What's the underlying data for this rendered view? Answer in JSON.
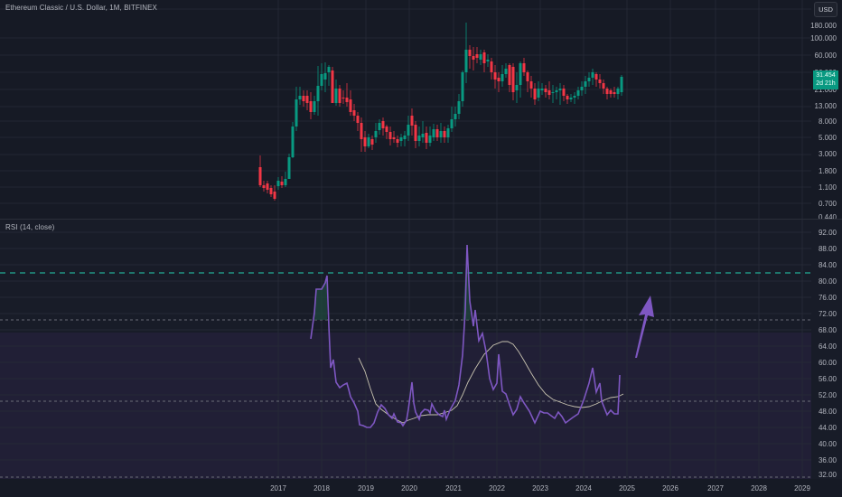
{
  "header": {
    "symbol_title": "Ethereum Classic / U.S. Dollar, 1M, BITFINEX",
    "currency_button": "USD"
  },
  "last_price": {
    "value": "31.454",
    "countdown": "2d 21h",
    "color": "#089981"
  },
  "rsi_legend": "RSI (14, close)",
  "colors": {
    "up": "#089981",
    "down": "#f23645",
    "rsi_line": "#7e57c2",
    "rsi_ma": "#c8c3b0",
    "upper_band": "#22ab94",
    "arrow": "#7e57c2"
  },
  "price_axis": [
    "180.000",
    "100.000",
    "60.000",
    "36.000",
    "21.000",
    "13.000",
    "8.000",
    "5.000",
    "3.000",
    "1.800",
    "1.100",
    "0.700",
    "0.440"
  ],
  "rsi_axis": [
    "92.00",
    "88.00",
    "84.00",
    "80.00",
    "76.00",
    "72.00",
    "68.00",
    "64.00",
    "60.00",
    "56.00",
    "52.00",
    "48.00",
    "44.00",
    "40.00",
    "36.00",
    "32.00"
  ],
  "time_axis": [
    "2017",
    "2018",
    "2019",
    "2020",
    "2021",
    "2022",
    "2023",
    "2024",
    "2025",
    "2026",
    "2027",
    "2028",
    "2029"
  ],
  "chart_data": [
    {
      "type": "candlestick",
      "title": "Ethereum Classic / U.S. Dollar, 1M, BITFINEX",
      "xlabel": "",
      "ylabel": "USD",
      "scale": "log",
      "ylim": [
        0.44,
        180
      ],
      "x_range": [
        "2016-08",
        "2024-11"
      ],
      "approx_monthly_close_path": [
        {
          "date": "2016-08",
          "close": 1.5
        },
        {
          "date": "2016-12",
          "close": 1.2
        },
        {
          "date": "2017-04",
          "close": 3.0
        },
        {
          "date": "2017-06",
          "close": 18
        },
        {
          "date": "2017-09",
          "close": 12
        },
        {
          "date": "2018-01",
          "close": 35
        },
        {
          "date": "2018-04",
          "close": 17
        },
        {
          "date": "2018-08",
          "close": 12
        },
        {
          "date": "2018-12",
          "close": 4.5
        },
        {
          "date": "2019-06",
          "close": 7
        },
        {
          "date": "2019-12",
          "close": 4.3
        },
        {
          "date": "2020-06",
          "close": 6.5
        },
        {
          "date": "2020-12",
          "close": 5.8
        },
        {
          "date": "2021-03",
          "close": 12
        },
        {
          "date": "2021-05",
          "close": 70
        },
        {
          "date": "2021-06",
          "close": 52
        },
        {
          "date": "2021-09",
          "close": 50
        },
        {
          "date": "2022-01",
          "close": 25
        },
        {
          "date": "2022-04",
          "close": 30
        },
        {
          "date": "2022-08",
          "close": 30
        },
        {
          "date": "2022-12",
          "close": 16
        },
        {
          "date": "2023-06",
          "close": 18
        },
        {
          "date": "2023-12",
          "close": 21
        },
        {
          "date": "2024-03",
          "close": 32
        },
        {
          "date": "2024-07",
          "close": 20
        },
        {
          "date": "2024-10",
          "close": 19
        },
        {
          "date": "2024-11",
          "close": 31.454
        }
      ],
      "all_time_high_wick": {
        "date": "2021-05",
        "high": 170
      }
    },
    {
      "type": "line",
      "title": "RSI (14, close)",
      "ylim": [
        30,
        94
      ],
      "hlines": [
        {
          "value": 81.5,
          "style": "dashed",
          "color": "#22ab94"
        },
        {
          "value": 70,
          "style": "dotted"
        },
        {
          "value": 50,
          "style": "dotted"
        }
      ],
      "band": [
        30,
        70
      ],
      "series": [
        {
          "name": "RSI",
          "x": [
            "2017-10",
            "2017-11",
            "2017-12",
            "2018-01",
            "2018-02",
            "2018-03",
            "2018-04",
            "2018-06",
            "2018-09",
            "2018-12",
            "2019-03",
            "2019-06",
            "2019-09",
            "2019-12",
            "2020-02",
            "2020-05",
            "2020-08",
            "2020-11",
            "2021-02",
            "2021-04",
            "2021-05",
            "2021-06",
            "2021-08",
            "2021-10",
            "2021-12",
            "2022-03",
            "2022-06",
            "2022-09",
            "2022-12",
            "2023-03",
            "2023-06",
            "2023-09",
            "2023-12",
            "2024-03",
            "2024-04",
            "2024-06",
            "2024-08",
            "2024-10",
            "2024-11"
          ],
          "values": [
            65,
            78,
            78,
            81.5,
            55,
            60,
            54,
            52,
            45,
            44,
            49,
            46,
            45,
            43,
            54,
            47,
            48,
            47,
            52,
            75,
            89,
            79,
            75,
            66,
            62,
            49,
            60,
            45,
            58,
            47,
            48,
            47,
            44,
            59,
            52,
            52,
            46,
            46,
            56
          ]
        },
        {
          "name": "RSI-based MA",
          "x": [
            "2018-10",
            "2019-06",
            "2019-12",
            "2020-06",
            "2020-12",
            "2021-04",
            "2021-08",
            "2021-12",
            "2022-03",
            "2022-06",
            "2022-12",
            "2023-06",
            "2023-12",
            "2024-04",
            "2024-08",
            "2024-11"
          ],
          "values": [
            61,
            49,
            45,
            47,
            47,
            49,
            60,
            65,
            64,
            56,
            51,
            47,
            47,
            49,
            49.5,
            50.5
          ]
        }
      ],
      "annotation": "upward purple arrow near 2025 pointing from ~61 to ~78"
    }
  ]
}
